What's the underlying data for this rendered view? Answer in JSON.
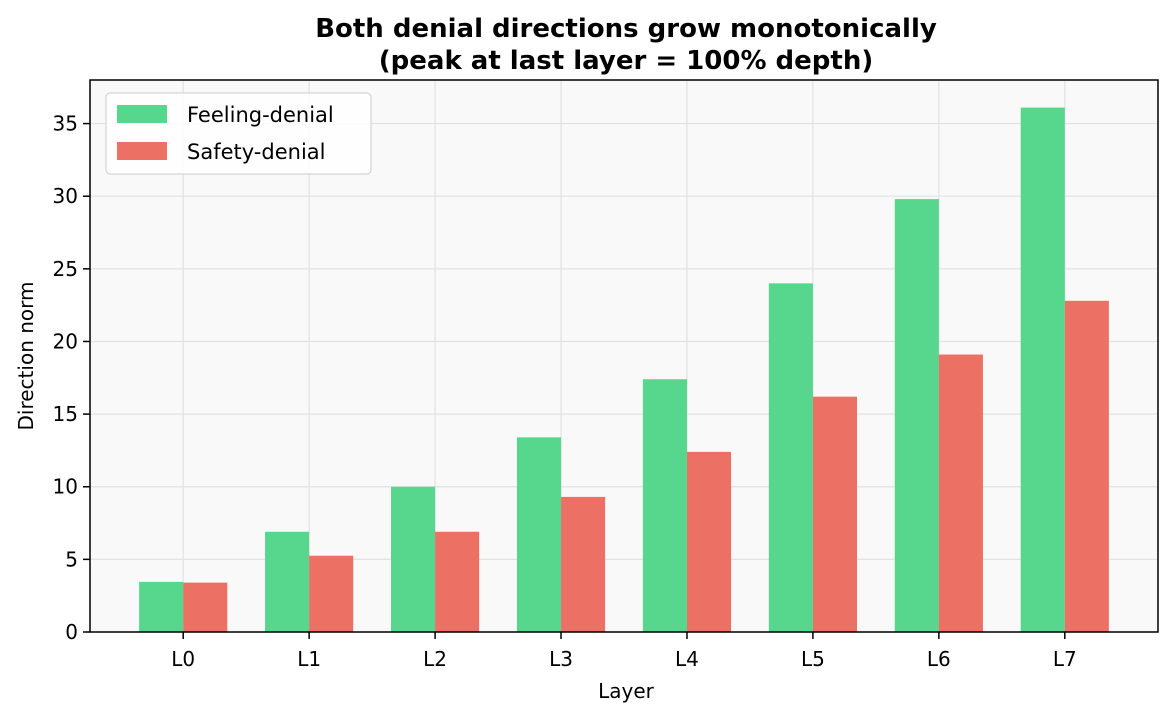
{
  "chart_data": {
    "type": "bar",
    "title_line1": "Both denial directions grow monotonically",
    "title_line2": "(peak at last layer = 100% depth)",
    "xlabel": "Layer",
    "ylabel": "Direction norm",
    "categories": [
      "L0",
      "L1",
      "L2",
      "L3",
      "L4",
      "L5",
      "L6",
      "L7"
    ],
    "ylim": [
      0,
      38
    ],
    "yticks": [
      0,
      5,
      10,
      15,
      20,
      25,
      30,
      35
    ],
    "series": [
      {
        "name": "Feeling-denial",
        "color": "#57d68d",
        "values": [
          3.45,
          6.9,
          10.0,
          13.4,
          17.4,
          24.0,
          29.8,
          36.1
        ]
      },
      {
        "name": "Safety-denial",
        "color": "#ec7063",
        "values": [
          3.4,
          5.25,
          6.9,
          9.3,
          12.4,
          16.2,
          19.1,
          22.8
        ]
      }
    ],
    "grid": true,
    "legend_position": "top-left",
    "plot_background": "#f9f9f9"
  }
}
